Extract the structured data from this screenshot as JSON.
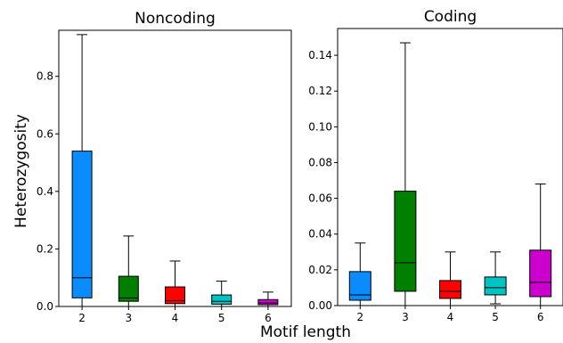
{
  "figure": {
    "xlabel": "Motif length",
    "ylabel": "Heterozygosity"
  },
  "chart_data": [
    {
      "type": "box",
      "title": "Noncoding",
      "categories": [
        "2",
        "3",
        "4",
        "5",
        "6"
      ],
      "colors": [
        "#0a8cff",
        "#007f00",
        "#ff0000",
        "#00c4c4",
        "#cc00cc"
      ],
      "ylim": [
        0,
        0.96
      ],
      "yticks": [
        0.0,
        0.2,
        0.4,
        0.6,
        0.8
      ],
      "ytick_labels": [
        "0.0",
        "0.2",
        "0.4",
        "0.6",
        "0.8"
      ],
      "boxes": [
        {
          "whislo": 0.0,
          "q1": 0.03,
          "med": 0.1,
          "q3": 0.54,
          "whishi": 0.945
        },
        {
          "whislo": 0.0,
          "q1": 0.018,
          "med": 0.03,
          "q3": 0.105,
          "whishi": 0.245
        },
        {
          "whislo": 0.0,
          "q1": 0.01,
          "med": 0.02,
          "q3": 0.068,
          "whishi": 0.158
        },
        {
          "whislo": 0.0,
          "q1": 0.008,
          "med": 0.018,
          "q3": 0.04,
          "whishi": 0.088
        },
        {
          "whislo": 0.0,
          "q1": 0.006,
          "med": 0.012,
          "q3": 0.024,
          "whishi": 0.05
        }
      ]
    },
    {
      "type": "box",
      "title": "Coding",
      "categories": [
        "2",
        "3",
        "4",
        "5",
        "6"
      ],
      "colors": [
        "#0a8cff",
        "#007f00",
        "#ff0000",
        "#00c4c4",
        "#cc00cc"
      ],
      "ylim": [
        0,
        0.155
      ],
      "yticks": [
        0.0,
        0.02,
        0.04,
        0.06,
        0.08,
        0.1,
        0.12,
        0.14
      ],
      "ytick_labels": [
        "0.00",
        "0.02",
        "0.04",
        "0.06",
        "0.08",
        "0.10",
        "0.12",
        "0.14"
      ],
      "boxes": [
        {
          "whislo": 0.0,
          "q1": 0.003,
          "med": 0.006,
          "q3": 0.019,
          "whishi": 0.035
        },
        {
          "whislo": 0.0,
          "q1": 0.008,
          "med": 0.024,
          "q3": 0.064,
          "whishi": 0.147
        },
        {
          "whislo": 0.0,
          "q1": 0.004,
          "med": 0.008,
          "q3": 0.014,
          "whishi": 0.03
        },
        {
          "whislo": 0.001,
          "q1": 0.006,
          "med": 0.01,
          "q3": 0.016,
          "whishi": 0.03
        },
        {
          "whislo": 0.0,
          "q1": 0.005,
          "med": 0.013,
          "q3": 0.031,
          "whishi": 0.068
        }
      ]
    }
  ]
}
